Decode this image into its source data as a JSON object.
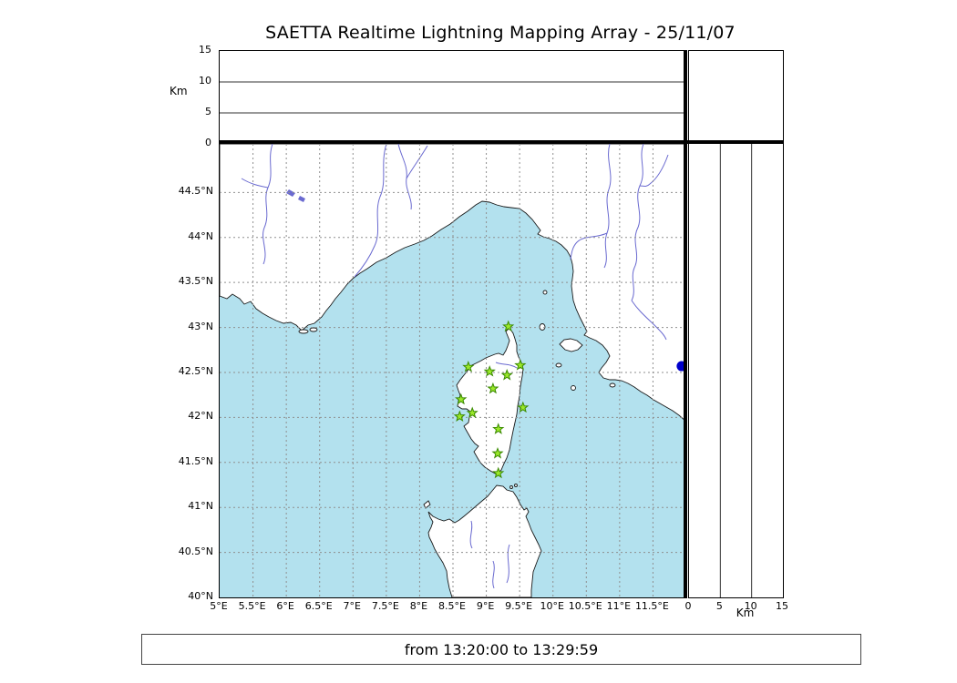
{
  "title": "SAETTA Realtime Lightning Mapping Array - 25/11/07",
  "footer": {
    "time_range": "from 13:20:00 to 13:29:59"
  },
  "colors": {
    "sea": "#b3e1ee",
    "land": "#ffffff",
    "coast": "#1a1a1a",
    "river": "#6a6ad0",
    "grid": "#8f8f8f",
    "station_fill": "#9be82a",
    "station_edge": "#3a8a00",
    "event_dot": "#0000cc"
  },
  "axes": {
    "altitude": {
      "label": "Km",
      "ticks": [
        15,
        10,
        5,
        0
      ],
      "range": [
        0,
        15
      ],
      "gridlines_km": [
        5,
        10
      ]
    },
    "altitude_right": {
      "label": "Km",
      "tick_labels": [
        "0",
        "5",
        "10",
        "15"
      ],
      "tick_values": [
        0,
        5,
        10,
        15
      ],
      "range": [
        0,
        15
      ],
      "gridlines_km": [
        5,
        10
      ]
    },
    "longitude": {
      "tick_labels": [
        "5°E",
        "5.5°E",
        "6°E",
        "6.5°E",
        "7°E",
        "7.5°E",
        "8°E",
        "8.5°E",
        "9°E",
        "9.5°E",
        "10°E",
        "10.5°E",
        "11°E",
        "11.5°E"
      ],
      "tick_values": [
        5,
        5.5,
        6,
        6.5,
        7,
        7.5,
        8,
        8.5,
        9,
        9.5,
        10,
        10.5,
        11,
        11.5
      ],
      "range": [
        5,
        12
      ]
    },
    "latitude": {
      "tick_labels": [
        "44.5°N",
        "44°N",
        "43.5°N",
        "43°N",
        "42.5°N",
        "42°N",
        "41.5°N",
        "41°N",
        "40.5°N",
        "40°N"
      ],
      "tick_values": [
        44.5,
        44,
        43.5,
        43,
        42.5,
        42,
        41.5,
        41,
        40.5,
        40
      ],
      "range": [
        40,
        45.04
      ]
    }
  },
  "chart_data": {
    "type": "scatter",
    "description": "SAETTA lightning mapping array: station locations (green stars) on a western Mediterranean map (Corsica region); altitude panels empty for this time window",
    "stations": [
      {
        "lon": 9.33,
        "lat": 43.01
      },
      {
        "lon": 8.73,
        "lat": 42.56
      },
      {
        "lon": 9.05,
        "lat": 42.51
      },
      {
        "lon": 9.31,
        "lat": 42.47
      },
      {
        "lon": 9.51,
        "lat": 42.58
      },
      {
        "lon": 9.1,
        "lat": 42.32
      },
      {
        "lon": 8.62,
        "lat": 42.2
      },
      {
        "lon": 8.79,
        "lat": 42.05
      },
      {
        "lon": 8.6,
        "lat": 42.01
      },
      {
        "lon": 9.55,
        "lat": 42.11
      },
      {
        "lon": 9.18,
        "lat": 41.87
      },
      {
        "lon": 9.17,
        "lat": 41.6
      },
      {
        "lon": 9.18,
        "lat": 41.38
      }
    ],
    "event_marker": {
      "lon": 11.93,
      "lat": 42.57
    }
  }
}
